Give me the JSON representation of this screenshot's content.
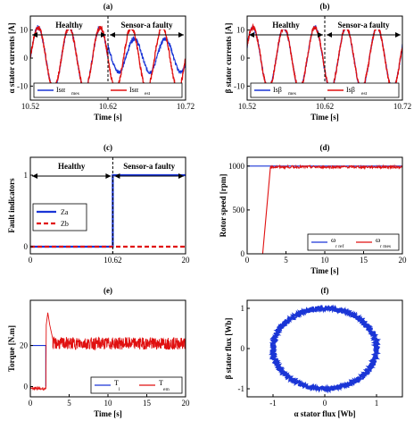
{
  "chart_data": [
    {
      "panel": "(a)",
      "type": "line",
      "xlabel": "Time [s]",
      "ylabel": "α stator currents [A]",
      "xlim": [
        10.52,
        10.72
      ],
      "ylim": [
        -15,
        15
      ],
      "xticks": [
        "10.52",
        "10.62",
        "10.72"
      ],
      "yticks": [
        "-10",
        "0",
        "10"
      ],
      "annotations": {
        "left": "Healthy",
        "right": "Sensor-a faulty",
        "fault_time": 10.62
      },
      "series": [
        {
          "name": "Isα",
          "sub": "mes",
          "color": "#1a35d6",
          "amplitude": 11,
          "cycles": 5,
          "amplitude_after_fault": 6,
          "offset_after_fault": 1
        },
        {
          "name": "Isα",
          "sub": "est",
          "color": "#e01010",
          "amplitude": 11,
          "cycles": 5
        }
      ],
      "legend": "bottom"
    },
    {
      "panel": "(b)",
      "type": "line",
      "xlabel": "Time [s]",
      "ylabel": "β stator currents [A]",
      "xlim": [
        10.52,
        10.72
      ],
      "ylim": [
        -15,
        15
      ],
      "xticks": [
        "10.52",
        "10.62",
        "10.72"
      ],
      "yticks": [
        "-10",
        "0",
        "10"
      ],
      "annotations": {
        "left": "Healthy",
        "right": "Sensor-a faulty",
        "fault_time": 10.62
      },
      "series": [
        {
          "name": "Isβ",
          "sub": "mes",
          "color": "#1a35d6",
          "amplitude": 11,
          "cycles": 5
        },
        {
          "name": "Isβ",
          "sub": "est",
          "color": "#e01010",
          "amplitude": 11,
          "cycles": 5
        }
      ],
      "legend": "bottom"
    },
    {
      "panel": "(c)",
      "type": "line",
      "xlabel": "",
      "ylabel": "Fault indicators",
      "xlim": [
        0,
        20
      ],
      "ylim": [
        -0.1,
        1.25
      ],
      "xticks": [
        "0",
        "10.62",
        "20"
      ],
      "yticks": [
        "0",
        "1"
      ],
      "annotations": {
        "left": "Healthy",
        "right": "Sensor-a faulty",
        "fault_time": 10.62
      },
      "series": [
        {
          "name": "Za",
          "color": "#1a35d6",
          "steps": [
            [
              0,
              0
            ],
            [
              10.62,
              0
            ],
            [
              10.62,
              1
            ],
            [
              20,
              1
            ]
          ]
        },
        {
          "name": "Zb",
          "color": "#e01010",
          "steps": [
            [
              0,
              0
            ],
            [
              20,
              0
            ]
          ],
          "dashed": true
        }
      ],
      "legend": "middle-left"
    },
    {
      "panel": "(d)",
      "type": "line",
      "xlabel": "Time [s]",
      "ylabel": "Rotor speed [rpm]",
      "xlim": [
        0,
        20
      ],
      "ylim": [
        0,
        1100
      ],
      "xticks": [
        "0",
        "5",
        "10",
        "15",
        "20"
      ],
      "yticks": [
        "0",
        "500",
        "1000"
      ],
      "series": [
        {
          "name": "ω",
          "sub": "r ref",
          "color": "#1a35d6",
          "values": [
            [
              0,
              1000
            ],
            [
              20,
              1000
            ]
          ]
        },
        {
          "name": "ω",
          "sub": "r mes",
          "color": "#e01010",
          "ramp": [
            [
              0,
              0
            ],
            [
              2,
              0
            ],
            [
              3,
              990
            ],
            [
              20,
              990
            ]
          ]
        }
      ],
      "legend": "bottom-right"
    },
    {
      "panel": "(e)",
      "type": "line",
      "xlabel": "Time [s]",
      "ylabel": "Torque [N.m]",
      "xlim": [
        0,
        20
      ],
      "ylim": [
        -5,
        42
      ],
      "xticks": [
        "0",
        "5",
        "10",
        "15",
        "20"
      ],
      "yticks": [
        "0",
        "20"
      ],
      "series": [
        {
          "name": "T",
          "sub": "l",
          "color": "#1a35d6",
          "values": [
            [
              0,
              20
            ],
            [
              2,
              20
            ]
          ]
        },
        {
          "name": "T",
          "sub": "em",
          "color": "#e01010",
          "level": 21,
          "peak": 36
        }
      ],
      "legend": "bottom-right"
    },
    {
      "panel": "(f)",
      "type": "line",
      "xlabel": "α stator flux [Wb]",
      "ylabel": "β stator flux [Wb]",
      "xlim": [
        -1.5,
        1.5
      ],
      "ylim": [
        -1.2,
        1.2
      ],
      "xticks": [
        "-1",
        "0",
        "1"
      ],
      "yticks": [
        "-1",
        "0",
        "1"
      ],
      "series": [
        {
          "name": "flux locus",
          "color": "#1a35d6",
          "radius": 1.0
        }
      ]
    }
  ]
}
